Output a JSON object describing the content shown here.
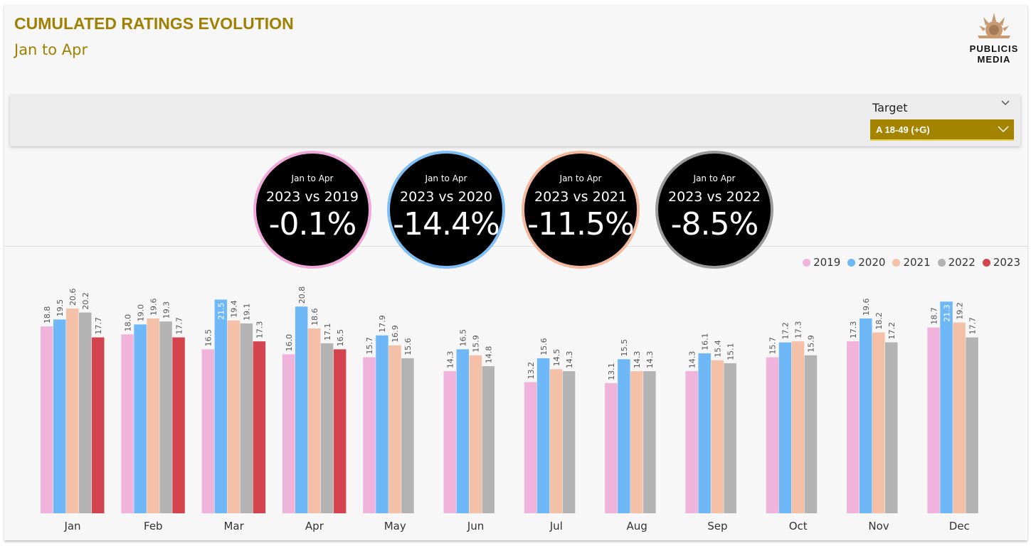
{
  "header": {
    "title": "CUMULATED RATINGS EVOLUTION",
    "subtitle": "Jan to Apr",
    "logo_line1": "PUBLICIS",
    "logo_line2": "MEDIA"
  },
  "filter": {
    "label": "Target",
    "selected": "A 18-49 (+G)"
  },
  "kpis": [
    {
      "period": "Jan to Apr",
      "comparison": "2023 vs 2019",
      "value": "-0.1%",
      "ring_color": "#f0a8d8"
    },
    {
      "period": "Jan to Apr",
      "comparison": "2023 vs 2020",
      "value": "-14.4%",
      "ring_color": "#7fbdf5"
    },
    {
      "period": "Jan to Apr",
      "comparison": "2023 vs 2021",
      "value": "-11.5%",
      "ring_color": "#f4b89d"
    },
    {
      "period": "Jan to Apr",
      "comparison": "2023 vs 2022",
      "value": "-8.5%",
      "ring_color": "#9a9a9a"
    }
  ],
  "chart_data": {
    "type": "bar",
    "categories": [
      "Jan",
      "Feb",
      "Mar",
      "Apr",
      "May",
      "Jun",
      "Jul",
      "Aug",
      "Sep",
      "Oct",
      "Nov",
      "Dec"
    ],
    "series": [
      {
        "name": "2019",
        "color": "#f0b3dc",
        "values": [
          18.8,
          18.0,
          16.5,
          16.0,
          15.7,
          14.3,
          13.2,
          13.1,
          14.3,
          15.7,
          17.3,
          18.7
        ]
      },
      {
        "name": "2020",
        "color": "#6fb8f8",
        "values": [
          19.5,
          19.0,
          21.5,
          20.8,
          17.9,
          16.5,
          15.6,
          15.5,
          16.1,
          17.2,
          19.6,
          21.3
        ]
      },
      {
        "name": "2021",
        "color": "#f4c1a8",
        "values": [
          20.6,
          19.6,
          19.4,
          18.6,
          16.9,
          15.9,
          14.5,
          14.3,
          15.4,
          17.3,
          18.2,
          19.2
        ]
      },
      {
        "name": "2022",
        "color": "#b3b3b3",
        "values": [
          20.2,
          19.3,
          19.1,
          17.1,
          15.6,
          14.8,
          14.3,
          14.3,
          15.1,
          15.9,
          17.2,
          17.7
        ]
      },
      {
        "name": "2023",
        "color": "#d4444f",
        "values": [
          17.7,
          17.7,
          17.3,
          16.5,
          null,
          null,
          null,
          null,
          null,
          null,
          null,
          null
        ]
      }
    ],
    "legend_position": "top-right",
    "ylim": [
      0,
      22
    ],
    "grid": false,
    "labels_inside": {
      "Mar-2020": true,
      "Dec-2020": true
    }
  }
}
